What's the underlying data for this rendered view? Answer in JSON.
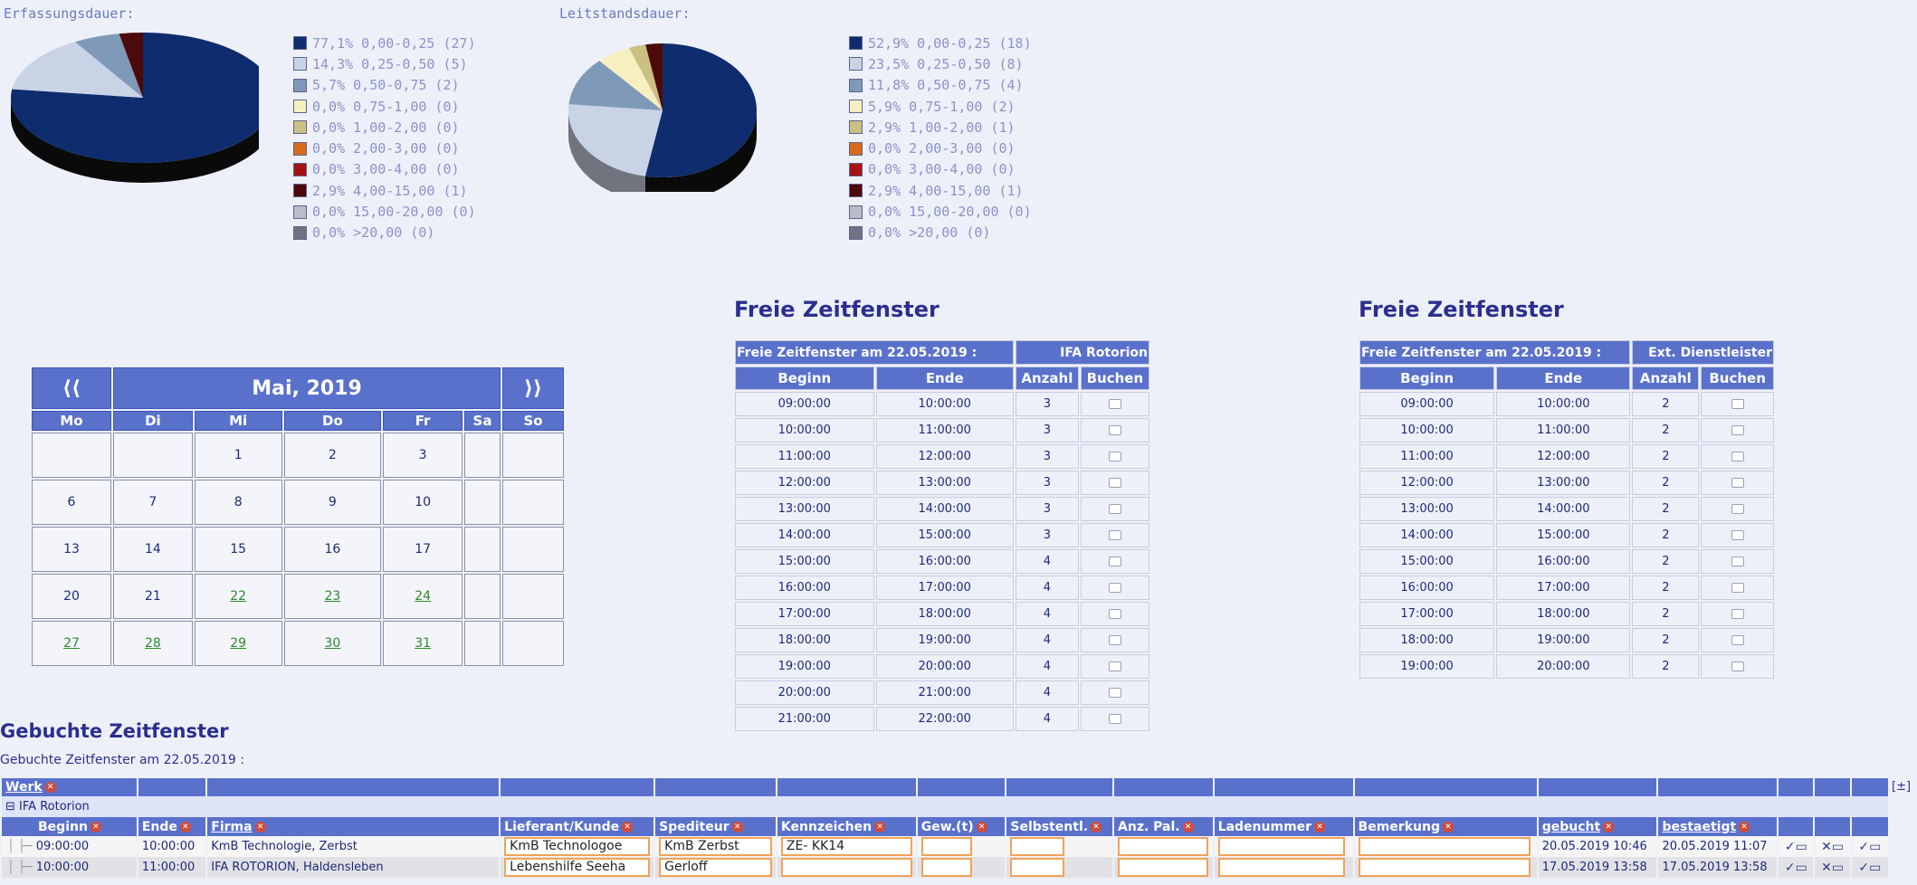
{
  "pies": [
    {
      "title": "Erfassungsdauer:",
      "legend": [
        {
          "label": "77,1% 0,00-0,25 (27)",
          "color": "#0f2c6e"
        },
        {
          "label": "14,3% 0,25-0,50 (5)",
          "color": "#c9d3e6"
        },
        {
          "label": "5,7% 0,50-0,75 (2)",
          "color": "#7f9ab8"
        },
        {
          "label": "0,0% 0,75-1,00 (0)",
          "color": "#f6f0c0"
        },
        {
          "label": "0,0% 1,00-2,00 (0)",
          "color": "#cbbf82"
        },
        {
          "label": "0,0% 2,00-3,00 (0)",
          "color": "#d96a1c"
        },
        {
          "label": "0,0% 3,00-4,00 (0)",
          "color": "#a51212"
        },
        {
          "label": "2,9% 4,00-15,00 (1)",
          "color": "#4d0a0a"
        },
        {
          "label": "0,0% 15,00-20,00 (0)",
          "color": "#b9bcc9"
        },
        {
          "label": "0,0% >20,00 (0)",
          "color": "#6f7280"
        }
      ],
      "slices": [
        77.1,
        14.3,
        5.7,
        0,
        0,
        0,
        0,
        2.9,
        0,
        0
      ]
    },
    {
      "title": "Leitstandsdauer:",
      "legend": [
        {
          "label": "52,9% 0,00-0,25 (18)",
          "color": "#0f2c6e"
        },
        {
          "label": "23,5% 0,25-0,50 (8)",
          "color": "#c9d3e6"
        },
        {
          "label": "11,8% 0,50-0,75 (4)",
          "color": "#7f9ab8"
        },
        {
          "label": "5,9% 0,75-1,00 (2)",
          "color": "#f6f0c0"
        },
        {
          "label": "2,9% 1,00-2,00 (1)",
          "color": "#cbbf82"
        },
        {
          "label": "0,0% 2,00-3,00 (0)",
          "color": "#d96a1c"
        },
        {
          "label": "0,0% 3,00-4,00 (0)",
          "color": "#a51212"
        },
        {
          "label": "2,9% 4,00-15,00 (1)",
          "color": "#4d0a0a"
        },
        {
          "label": "0,0% 15,00-20,00 (0)",
          "color": "#b9bcc9"
        },
        {
          "label": "0,0% >20,00 (0)",
          "color": "#6f7280"
        }
      ],
      "slices": [
        52.9,
        23.5,
        11.8,
        5.9,
        2.9,
        0,
        0,
        2.9,
        0,
        0
      ]
    }
  ],
  "calendar": {
    "prev": "⟨⟨",
    "next": "⟩⟩",
    "month": "Mai, 2019",
    "days": [
      "Mo",
      "Di",
      "Mi",
      "Do",
      "Fr",
      "Sa",
      "So"
    ],
    "weeks": [
      [
        "",
        "",
        "1",
        "2",
        "3",
        "",
        ""
      ],
      [
        "6",
        "7",
        "8",
        "9",
        "10",
        "",
        ""
      ],
      [
        "13",
        "14",
        "15",
        "16",
        "17",
        "",
        ""
      ],
      [
        "20",
        "21",
        "22",
        "23",
        "24",
        "",
        ""
      ],
      [
        "27",
        "28",
        "29",
        "30",
        "31",
        "",
        ""
      ]
    ],
    "linked": [
      "22",
      "23",
      "24",
      "27",
      "28",
      "29",
      "30",
      "31"
    ]
  },
  "slots": [
    {
      "heading": "Freie Zeitfenster",
      "caption": "Freie Zeitfenster am 22.05.2019 :",
      "provider": "IFA Rotorion",
      "cols": [
        "Beginn",
        "Ende",
        "Anzahl",
        "Buchen"
      ],
      "rows": [
        [
          "09:00:00",
          "10:00:00",
          "3"
        ],
        [
          "10:00:00",
          "11:00:00",
          "3"
        ],
        [
          "11:00:00",
          "12:00:00",
          "3"
        ],
        [
          "12:00:00",
          "13:00:00",
          "3"
        ],
        [
          "13:00:00",
          "14:00:00",
          "3"
        ],
        [
          "14:00:00",
          "15:00:00",
          "3"
        ],
        [
          "15:00:00",
          "16:00:00",
          "4"
        ],
        [
          "16:00:00",
          "17:00:00",
          "4"
        ],
        [
          "17:00:00",
          "18:00:00",
          "4"
        ],
        [
          "18:00:00",
          "19:00:00",
          "4"
        ],
        [
          "19:00:00",
          "20:00:00",
          "4"
        ],
        [
          "20:00:00",
          "21:00:00",
          "4"
        ],
        [
          "21:00:00",
          "22:00:00",
          "4"
        ]
      ]
    },
    {
      "heading": "Freie Zeitfenster",
      "caption": "Freie Zeitfenster am 22.05.2019 :",
      "provider": "Ext. Dienstleister",
      "cols": [
        "Beginn",
        "Ende",
        "Anzahl",
        "Buchen"
      ],
      "rows": [
        [
          "09:00:00",
          "10:00:00",
          "2"
        ],
        [
          "10:00:00",
          "11:00:00",
          "2"
        ],
        [
          "11:00:00",
          "12:00:00",
          "2"
        ],
        [
          "12:00:00",
          "13:00:00",
          "2"
        ],
        [
          "13:00:00",
          "14:00:00",
          "2"
        ],
        [
          "14:00:00",
          "15:00:00",
          "2"
        ],
        [
          "15:00:00",
          "16:00:00",
          "2"
        ],
        [
          "16:00:00",
          "17:00:00",
          "2"
        ],
        [
          "17:00:00",
          "18:00:00",
          "2"
        ],
        [
          "18:00:00",
          "19:00:00",
          "2"
        ],
        [
          "19:00:00",
          "20:00:00",
          "2"
        ]
      ]
    }
  ],
  "booked": {
    "heading": "Gebuchte Zeitfenster",
    "subtitle": "Gebuchte Zeitfenster am 22.05.2019 :",
    "group_col": "Werk",
    "toggle": "[±]",
    "group_name": "IFA Rotorion",
    "cols": [
      "Beginn",
      "Ende",
      "Firma",
      "Lieferant/Kunde",
      "Spediteur",
      "Kennzeichen",
      "Gew.(t)",
      "Selbstentl.",
      "Anz. Pal.",
      "Ladenummer",
      "Bemerkung",
      "gebucht",
      "bestaetigt"
    ],
    "rows": [
      {
        "beginn": "09:00:00",
        "ende": "10:00:00",
        "firma": "KmB Technologie, Zerbst",
        "lieferant": "KmB Technologoe",
        "spediteur": "KmB Zerbst",
        "kennzeichen": "ZE- KK14",
        "gebucht": "20.05.2019 10:46",
        "bestaetigt": "20.05.2019 11:07"
      },
      {
        "beginn": "10:00:00",
        "ende": "11:00:00",
        "firma": "IFA ROTORION, Haldensleben",
        "lieferant": "Lebenshilfe Seeha",
        "spediteur": "Gerloff",
        "kennzeichen": "",
        "gebucht": "17.05.2019 13:58",
        "bestaetigt": "17.05.2019 13:58"
      }
    ]
  }
}
